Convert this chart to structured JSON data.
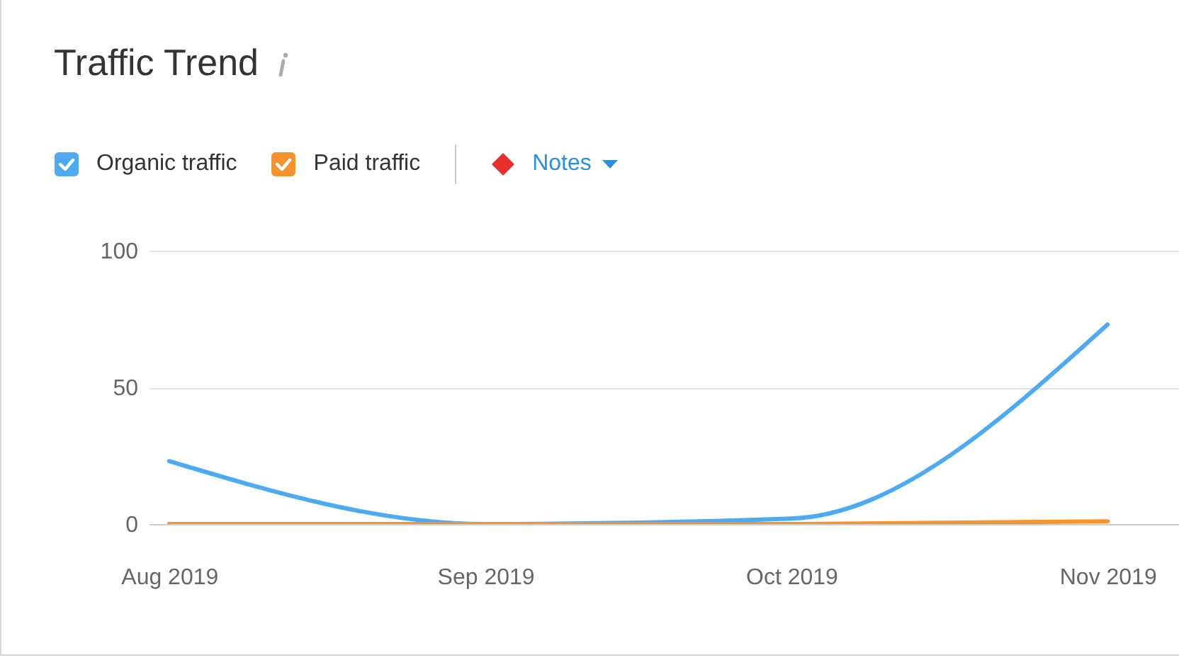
{
  "chart_data": {
    "type": "line",
    "title": "Traffic Trend",
    "annotations": [
      "Notes"
    ],
    "x": [
      "2019-08",
      "2019-09",
      "2019-10",
      "2019-11"
    ],
    "series": [
      {
        "name": "Organic traffic",
        "color": "#4eaaf0",
        "values": [
          23,
          0,
          2,
          73
        ]
      },
      {
        "name": "Paid traffic",
        "color": "#f7932e",
        "values": [
          0,
          0,
          0,
          1
        ]
      }
    ],
    "xlim": [
      "2019-07-30",
      "2019-11-08"
    ],
    "xticks": [
      {
        "value": "2019-08",
        "label": "Aug 2019"
      },
      {
        "value": "2019-09",
        "label": "Sep 2019"
      },
      {
        "value": "2019-10",
        "label": "Oct 2019"
      },
      {
        "value": "2019-11",
        "label": "Nov 2019"
      }
    ],
    "ylim": [
      0,
      100
    ],
    "yticks": [
      0,
      50,
      100
    ],
    "grid": "y",
    "legend": "top left",
    "marker": "none",
    "line_style": "solid"
  }
}
